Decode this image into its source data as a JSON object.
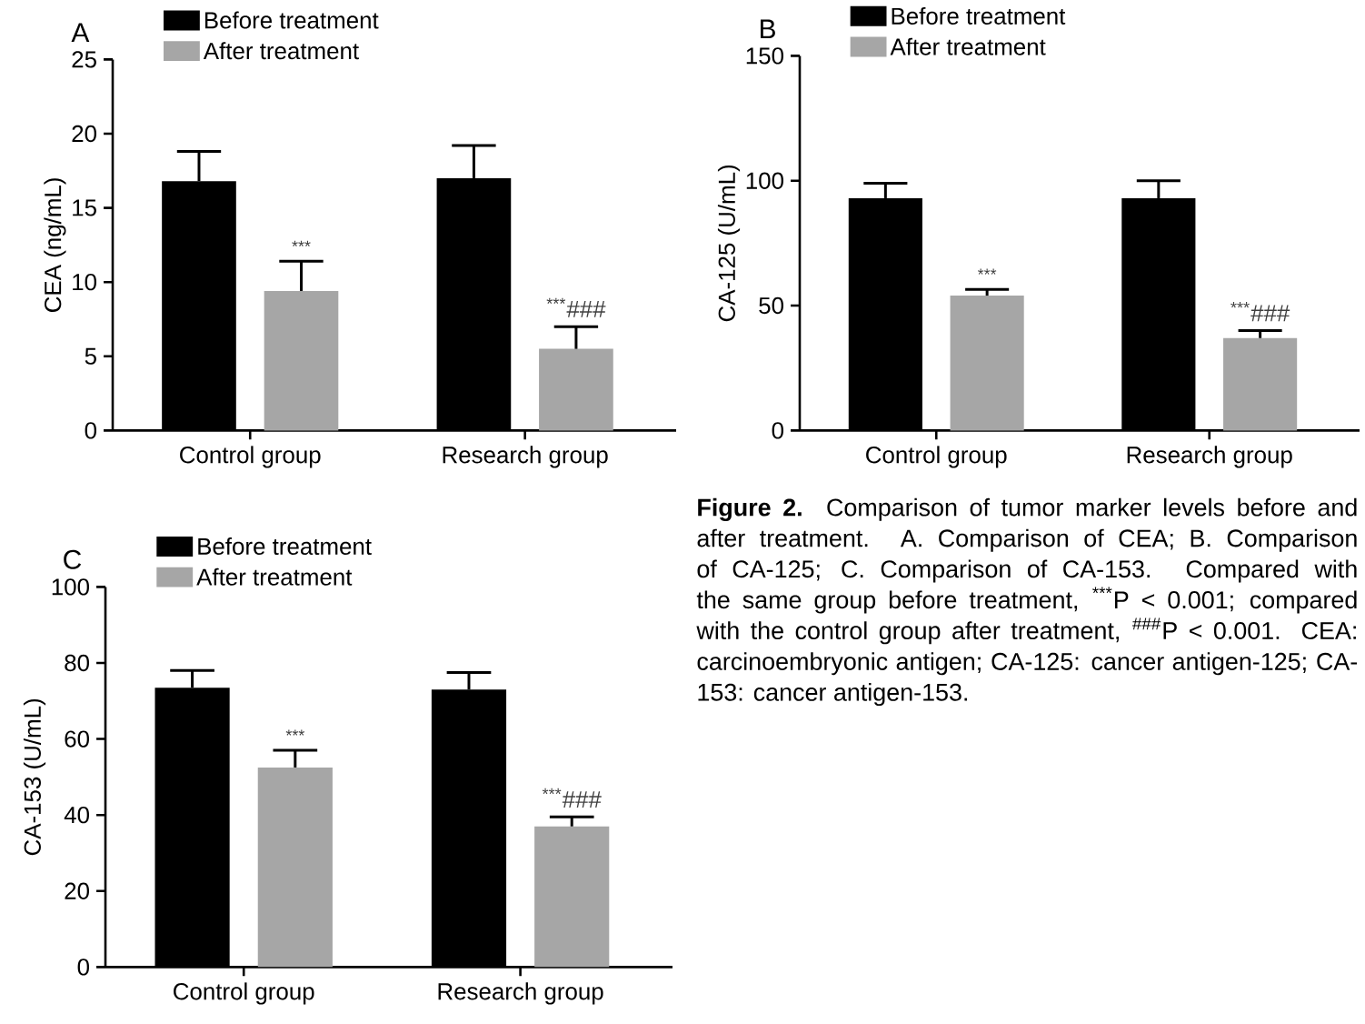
{
  "chart_data": [
    {
      "type": "bar",
      "title": "A",
      "ylabel": "CEA (ng/mL)",
      "categories": [
        "Control group",
        "Research group"
      ],
      "ylim": [
        0,
        25
      ],
      "yticks": [
        0,
        5,
        10,
        15,
        20,
        25
      ],
      "legend": "top left",
      "series": [
        {
          "name": "Before treatment",
          "color": "#000000",
          "values": [
            16.8,
            17.0
          ],
          "errors": [
            [
              16.8,
              18.8
            ],
            [
              17.0,
              19.2
            ]
          ]
        },
        {
          "name": "After treatment",
          "color": "#a6a6a6",
          "values": [
            9.4,
            5.5
          ],
          "errors": [
            [
              9.4,
              11.4
            ],
            [
              5.5,
              7.0
            ]
          ]
        }
      ],
      "annotations": [
        "***",
        "$^{***}$###"
      ]
    },
    {
      "type": "bar",
      "title": "B",
      "ylabel": "CA-125 (U/mL)",
      "categories": [
        "Control group",
        "Research group"
      ],
      "ylim": [
        0,
        150
      ],
      "yticks": [
        0,
        50,
        100,
        150
      ],
      "legend": "top left",
      "series": [
        {
          "name": "Before treatment",
          "color": "#000000",
          "values": [
            93,
            93
          ],
          "errors": [
            [
              93,
              99
            ],
            [
              93,
              100
            ]
          ]
        },
        {
          "name": "After treatment",
          "color": "#a6a6a6",
          "values": [
            54,
            37
          ],
          "errors": [
            [
              54,
              56.5
            ],
            [
              37,
              40
            ]
          ]
        }
      ],
      "annotations": [
        "***",
        "$^{***}$###"
      ]
    },
    {
      "type": "bar",
      "title": "C",
      "ylabel": "CA-153 (U/mL)",
      "categories": [
        "Control group",
        "Research group"
      ],
      "ylim": [
        0,
        100
      ],
      "yticks": [
        0,
        20,
        40,
        60,
        80,
        100
      ],
      "legend": "top left",
      "series": [
        {
          "name": "Before treatment",
          "color": "#000000",
          "values": [
            73.5,
            73
          ],
          "errors": [
            [
              73.5,
              78
            ],
            [
              73,
              77.5
            ]
          ]
        },
        {
          "name": "After treatment",
          "color": "#a6a6a6",
          "values": [
            52.5,
            37
          ],
          "errors": [
            [
              52.5,
              57
            ],
            [
              37,
              39.5
            ]
          ]
        }
      ],
      "annotations": [
        "***",
        "$^{***}$###"
      ]
    },
    {
      "type": "other",
      "annotations": [
        "**Figure 2.** Comparison of tumor marker levels before and after treatment. A. Comparison of CEA; B. Comparison of CA-125; C. Comparison of CA-153. Compared with the same group before treatment, $^{***}$P < 0.001; compared with the control group after treatment, $^{###}$P < 0.001. CEA: carcinoembryonic antigen; CA-125: cancer antigen-125; CA-153: cancer antigen-153."
      ]
    }
  ]
}
